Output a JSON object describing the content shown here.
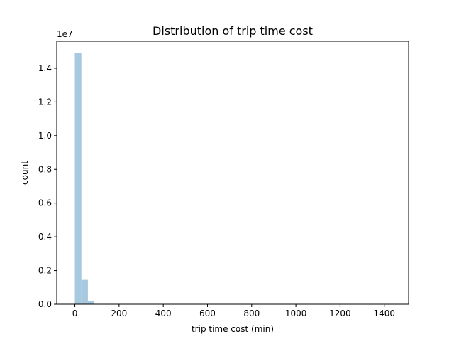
{
  "chart_data": {
    "type": "bar",
    "title": "Distribution of trip time cost",
    "xlabel": "trip time cost (min)",
    "ylabel": "count",
    "y_offset_label": "1e7",
    "xlim": [
      -82,
      1510
    ],
    "ylim": [
      0,
      15.6
    ],
    "x_ticks": [
      0,
      200,
      400,
      600,
      800,
      1000,
      1200,
      1400
    ],
    "x_tick_labels": [
      "0",
      "200",
      "400",
      "600",
      "800",
      "1000",
      "1200",
      "1400"
    ],
    "y_ticks": [
      0,
      2,
      4,
      6,
      8,
      10,
      12,
      14
    ],
    "y_tick_labels": [
      "0.0",
      "0.2",
      "0.4",
      "0.6",
      "0.8",
      "1.0",
      "1.2",
      "1.4"
    ],
    "bin_width": 29.5,
    "bins": [
      {
        "x0": 0,
        "x1": 29.5,
        "value": 14.9
      },
      {
        "x0": 29.5,
        "x1": 59,
        "value": 1.45
      },
      {
        "x0": 59,
        "x1": 88.5,
        "value": 0.18
      },
      {
        "x0": 88.5,
        "x1": 118,
        "value": 0.02
      }
    ],
    "bar_color": "#a6c9e0",
    "grid": false,
    "legend": "none"
  }
}
